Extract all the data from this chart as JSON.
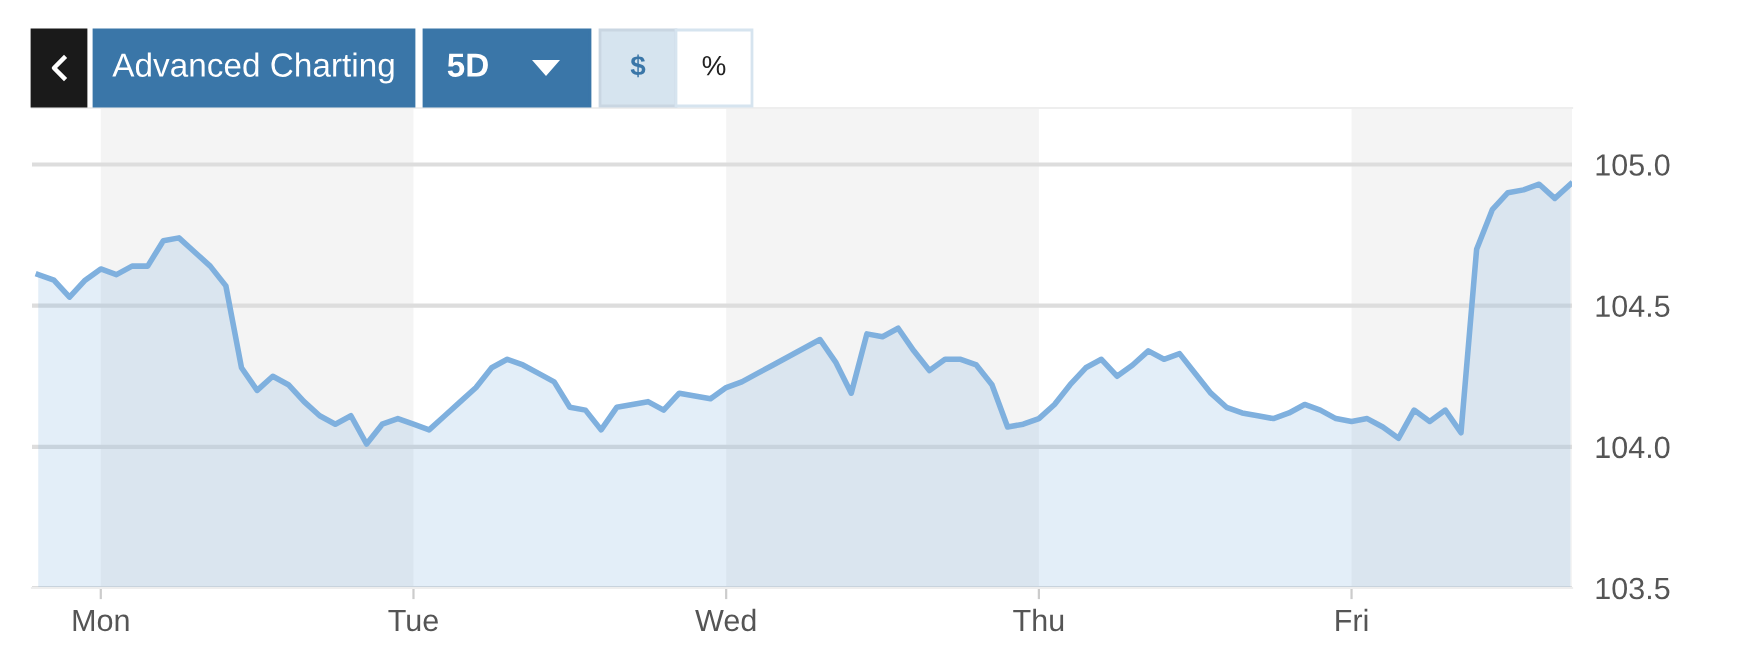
{
  "chart_data": {
    "type": "area",
    "annotations": [
      "Advanced Charting",
      "5D",
      "$",
      "%"
    ],
    "categories": [
      null,
      null,
      null,
      null,
      "Mon",
      null,
      null,
      null,
      null,
      null,
      null,
      null,
      null,
      null,
      null,
      null,
      null,
      null,
      null,
      null,
      null,
      null,
      null,
      null,
      "Tue",
      null,
      null,
      null,
      null,
      null,
      null,
      null,
      null,
      null,
      null,
      null,
      null,
      null,
      null,
      null,
      null,
      null,
      null,
      null,
      "Wed",
      null,
      null,
      null,
      null,
      null,
      null,
      null,
      null,
      null,
      null,
      null,
      null,
      null,
      null,
      null,
      null,
      null,
      null,
      null,
      "Thu",
      null,
      null,
      null,
      null,
      null,
      null,
      null,
      null,
      null,
      null,
      null,
      null,
      null,
      null,
      null,
      null,
      null,
      null,
      null,
      "Fri",
      null,
      null,
      null,
      null,
      null,
      null,
      null,
      null,
      null,
      null,
      null,
      null,
      null,
      null
    ],
    "series": [
      {
        "color": "#7fb0de",
        "values": [
          104.61,
          104.59,
          104.53,
          104.59,
          104.63,
          104.61,
          104.64,
          104.64,
          104.73,
          104.74,
          104.69,
          104.64,
          104.57,
          104.28,
          104.2,
          104.25,
          104.22,
          104.16,
          104.11,
          104.08,
          104.11,
          104.01,
          104.08,
          104.1,
          104.08,
          104.06,
          104.11,
          104.16,
          104.21,
          104.28,
          104.31,
          104.29,
          104.26,
          104.23,
          104.14,
          104.13,
          104.06,
          104.14,
          104.15,
          104.16,
          104.13,
          104.19,
          104.18,
          104.17,
          104.21,
          104.23,
          104.26,
          104.29,
          104.32,
          104.35,
          104.38,
          104.3,
          104.19,
          104.4,
          104.39,
          104.42,
          104.34,
          104.27,
          104.31,
          104.31,
          104.29,
          104.22,
          104.07,
          104.08,
          104.1,
          104.15,
          104.22,
          104.28,
          104.31,
          104.25,
          104.29,
          104.34,
          104.31,
          104.33,
          104.26,
          104.19,
          104.14,
          104.12,
          104.11,
          104.1,
          104.12,
          104.15,
          104.13,
          104.1,
          104.09,
          104.1,
          104.07,
          104.03,
          104.13,
          104.09,
          104.13,
          104.05,
          104.7,
          104.84,
          104.9,
          104.91,
          104.93,
          104.88,
          104.93
        ]
      }
    ],
    "ylim": [
      103.5,
      105.2
    ],
    "yticks": [
      {
        "value": 103.5,
        "label": "103.5"
      },
      {
        "value": 104,
        "label": "104.0"
      },
      {
        "value": 104.5,
        "label": "104.5"
      },
      {
        "value": 105,
        "label": "105.0"
      }
    ],
    "grid": "y",
    "legend": false
  }
}
